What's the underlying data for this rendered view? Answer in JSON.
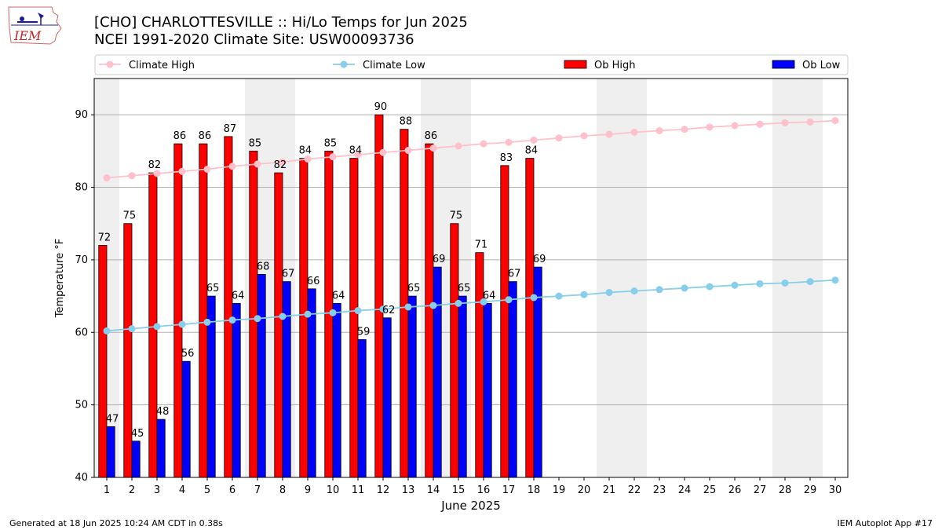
{
  "title_line1": "[CHO] CHARLOTTESVILLE :: Hi/Lo Temps for Jun 2025",
  "title_line2": "NCEI 1991-2020 Climate Site: USW00093736",
  "logo_text": "IEM",
  "footer_left": "Generated at 18 Jun 2025 10:24 AM CDT in 0.38s",
  "footer_right": "IEM Autoplot App #17",
  "colors": {
    "climate_high": "#ffc0cb",
    "climate_low": "#87ceeb",
    "ob_high": "#ff0000",
    "ob_low": "#0000ff",
    "weekend_shade": "#efefef",
    "grid": "#b0b0b0"
  },
  "chart_data": {
    "type": "bar",
    "xlabel": "June 2025",
    "ylabel": "Temperature °F",
    "ylim": [
      40,
      95
    ],
    "xlim": [
      0.5,
      30.5
    ],
    "yticks": [
      40,
      50,
      60,
      70,
      80,
      90
    ],
    "grid": "horizontal",
    "legend_placement": "top",
    "legend": [
      "Climate High",
      "Climate Low",
      "Ob High",
      "Ob Low"
    ],
    "days": [
      1,
      2,
      3,
      4,
      5,
      6,
      7,
      8,
      9,
      10,
      11,
      12,
      13,
      14,
      15,
      16,
      17,
      18,
      19,
      20,
      21,
      22,
      23,
      24,
      25,
      26,
      27,
      28,
      29,
      30
    ],
    "shaded_weekends": [
      [
        1,
        1
      ],
      [
        7,
        8
      ],
      [
        14,
        15
      ],
      [
        21,
        22
      ],
      [
        28,
        29
      ]
    ],
    "series": [
      {
        "name": "Ob High",
        "kind": "bar",
        "values": [
          72,
          75,
          82,
          86,
          86,
          87,
          85,
          82,
          84,
          85,
          84,
          90,
          88,
          86,
          75,
          71,
          83,
          84
        ]
      },
      {
        "name": "Ob Low",
        "kind": "bar",
        "values": [
          47,
          45,
          48,
          56,
          65,
          64,
          68,
          67,
          66,
          64,
          59,
          62,
          65,
          69,
          65,
          64,
          67,
          69
        ]
      },
      {
        "name": "Climate High",
        "kind": "line",
        "values": [
          81.3,
          81.6,
          81.9,
          82.2,
          82.5,
          82.9,
          83.2,
          83.5,
          83.9,
          84.2,
          84.5,
          84.8,
          85.1,
          85.4,
          85.7,
          86.0,
          86.2,
          86.5,
          86.8,
          87.1,
          87.3,
          87.6,
          87.8,
          88.0,
          88.3,
          88.5,
          88.7,
          88.9,
          89.0,
          89.2
        ]
      },
      {
        "name": "Climate Low",
        "kind": "line",
        "values": [
          60.2,
          60.5,
          60.8,
          61.1,
          61.4,
          61.7,
          61.9,
          62.2,
          62.5,
          62.7,
          63.0,
          63.2,
          63.5,
          63.7,
          64.0,
          64.2,
          64.5,
          64.8,
          65.0,
          65.2,
          65.5,
          65.7,
          65.9,
          66.1,
          66.3,
          66.5,
          66.7,
          66.8,
          67.0,
          67.2
        ]
      }
    ]
  }
}
